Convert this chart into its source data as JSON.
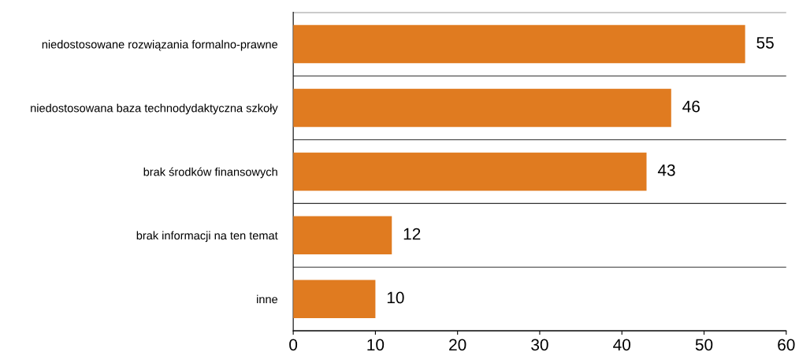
{
  "chart_data": {
    "type": "bar",
    "orientation": "horizontal",
    "categories": [
      "niedostosowane rozwiązania formalno-prawne",
      "niedostosowana baza technodydaktyczna szkoły",
      "brak środków finansowych",
      "brak informacji na ten temat",
      "inne"
    ],
    "values": [
      55,
      46,
      43,
      12,
      10
    ],
    "color": "#e07b20",
    "xlim": [
      0,
      60
    ],
    "xticks": [
      0,
      10,
      20,
      30,
      40,
      50,
      60
    ],
    "grid": "y",
    "data_labels": true
  }
}
